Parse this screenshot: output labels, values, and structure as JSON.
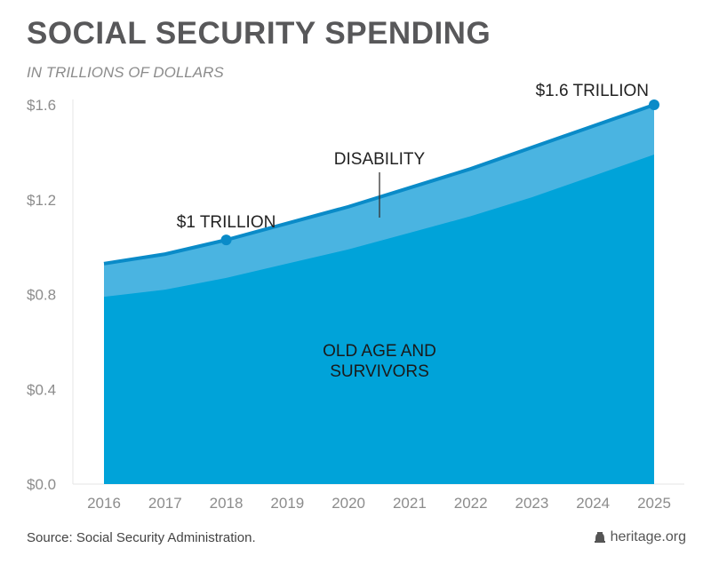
{
  "title": "SOCIAL SECURITY SPENDING",
  "subtitle": "IN TRILLIONS OF DOLLARS",
  "source": "Source: Social Security Administration.",
  "brand": "heritage.org",
  "brand_icon": "liberty-bell-icon",
  "colors": {
    "old_age": "#00a3d9",
    "disability": "#4ab4e1",
    "line": "#0a8bc8"
  },
  "chart_data": {
    "type": "area",
    "stacked": true,
    "title": "SOCIAL SECURITY SPENDING",
    "subtitle": "IN TRILLIONS OF DOLLARS",
    "x": [
      2016,
      2017,
      2018,
      2019,
      2020,
      2021,
      2022,
      2023,
      2024,
      2025
    ],
    "ylim": [
      0,
      1.6
    ],
    "yticks": [
      0,
      0.4,
      0.8,
      1.2,
      1.6
    ],
    "ytick_labels": [
      "$0.0",
      "$0.4",
      "$0.8",
      "$1.2",
      "$1.6"
    ],
    "grid": false,
    "series": [
      {
        "name": "OLD AGE AND SURVIVORS",
        "values": [
          0.79,
          0.82,
          0.87,
          0.93,
          0.99,
          1.06,
          1.13,
          1.21,
          1.3,
          1.39
        ]
      },
      {
        "name": "DISABILITY",
        "values": [
          0.14,
          0.15,
          0.16,
          0.17,
          0.18,
          0.19,
          0.2,
          0.21,
          0.21,
          0.21
        ]
      }
    ],
    "total": [
      0.93,
      0.97,
      1.03,
      1.1,
      1.17,
      1.25,
      1.33,
      1.42,
      1.51,
      1.6
    ],
    "annotations": [
      {
        "text": "$1 TRILLION",
        "x": 2018
      },
      {
        "text": "$1.6 TRILLION",
        "x": 2025
      }
    ]
  }
}
